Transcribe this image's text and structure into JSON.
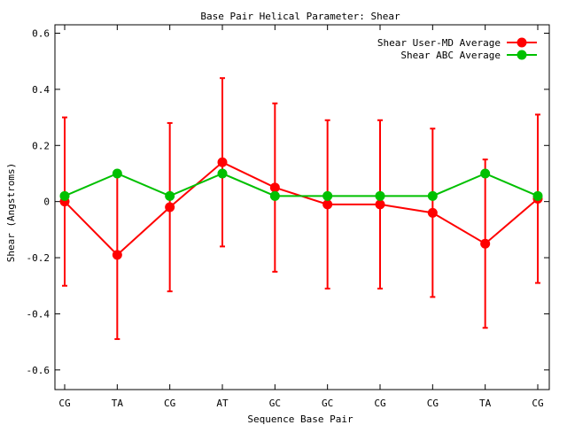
{
  "chart_data": {
    "type": "line",
    "title": "Base Pair Helical Parameter: Shear",
    "xlabel": "Sequence Base Pair",
    "ylabel": "Shear (Angstroms)",
    "categories": [
      "CG",
      "TA",
      "CG",
      "AT",
      "GC",
      "GC",
      "CG",
      "CG",
      "TA",
      "CG"
    ],
    "ylim": [
      -0.67,
      0.63
    ],
    "yticks": [
      -0.6,
      -0.4,
      -0.2,
      0,
      0.2,
      0.4,
      0.6
    ],
    "ytick_labels": [
      "-0.6",
      "-0.4",
      "-0.2",
      "0",
      "0.2",
      "0.4",
      "0.6"
    ],
    "grid": false,
    "legend_position": "top-right",
    "series": [
      {
        "name": "Shear User-MD Average",
        "color": "#ff0000",
        "values": [
          0.0,
          -0.19,
          -0.02,
          0.14,
          0.05,
          -0.01,
          -0.01,
          -0.04,
          -0.15,
          0.01
        ],
        "error": [
          0.3,
          0.3,
          0.3,
          0.3,
          0.3,
          0.3,
          0.3,
          0.3,
          0.3,
          0.3
        ]
      },
      {
        "name": "Shear ABC Average",
        "color": "#00c000",
        "values": [
          0.02,
          0.1,
          0.02,
          0.1,
          0.02,
          0.02,
          0.02,
          0.02,
          0.1,
          0.02
        ]
      }
    ]
  }
}
